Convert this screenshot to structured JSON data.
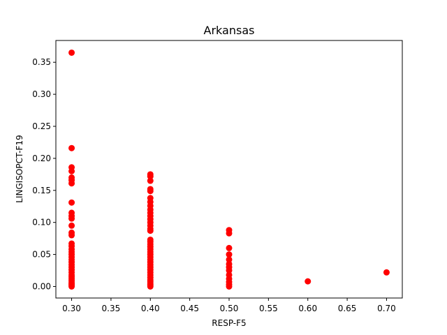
{
  "chart_data": {
    "type": "scatter",
    "title": "Arkansas",
    "xlabel": "RESP-F5",
    "ylabel": "LINGISOPCT-F19",
    "xlim": [
      0.28,
      0.72
    ],
    "ylim": [
      -0.018,
      0.384
    ],
    "xticks": [
      0.3,
      0.35,
      0.4,
      0.45,
      0.5,
      0.55,
      0.6,
      0.65,
      0.7
    ],
    "xtick_labels": [
      "0.30",
      "0.35",
      "0.40",
      "0.45",
      "0.50",
      "0.55",
      "0.60",
      "0.65",
      "0.70"
    ],
    "yticks": [
      0.0,
      0.05,
      0.1,
      0.15,
      0.2,
      0.25,
      0.3,
      0.35
    ],
    "ytick_labels": [
      "0.00",
      "0.05",
      "0.10",
      "0.15",
      "0.20",
      "0.25",
      "0.30",
      "0.35"
    ],
    "grid": false,
    "marker_color": "#ff0000",
    "points": [
      {
        "x": 0.3,
        "y": 0.365
      },
      {
        "x": 0.3,
        "y": 0.216
      },
      {
        "x": 0.3,
        "y": 0.186
      },
      {
        "x": 0.3,
        "y": 0.18
      },
      {
        "x": 0.3,
        "y": 0.17
      },
      {
        "x": 0.3,
        "y": 0.166
      },
      {
        "x": 0.3,
        "y": 0.161
      },
      {
        "x": 0.3,
        "y": 0.131
      },
      {
        "x": 0.3,
        "y": 0.115
      },
      {
        "x": 0.3,
        "y": 0.11
      },
      {
        "x": 0.3,
        "y": 0.106
      },
      {
        "x": 0.3,
        "y": 0.095
      },
      {
        "x": 0.3,
        "y": 0.084
      },
      {
        "x": 0.3,
        "y": 0.08
      },
      {
        "x": 0.3,
        "y": 0.067
      },
      {
        "x": 0.3,
        "y": 0.063
      },
      {
        "x": 0.3,
        "y": 0.058
      },
      {
        "x": 0.3,
        "y": 0.054
      },
      {
        "x": 0.3,
        "y": 0.05
      },
      {
        "x": 0.3,
        "y": 0.046
      },
      {
        "x": 0.3,
        "y": 0.042
      },
      {
        "x": 0.3,
        "y": 0.038
      },
      {
        "x": 0.3,
        "y": 0.034
      },
      {
        "x": 0.3,
        "y": 0.03
      },
      {
        "x": 0.3,
        "y": 0.026
      },
      {
        "x": 0.3,
        "y": 0.022
      },
      {
        "x": 0.3,
        "y": 0.018
      },
      {
        "x": 0.3,
        "y": 0.015
      },
      {
        "x": 0.3,
        "y": 0.012
      },
      {
        "x": 0.3,
        "y": 0.009
      },
      {
        "x": 0.3,
        "y": 0.006
      },
      {
        "x": 0.3,
        "y": 0.004
      },
      {
        "x": 0.3,
        "y": 0.002
      },
      {
        "x": 0.3,
        "y": 0.0
      },
      {
        "x": 0.4,
        "y": 0.175
      },
      {
        "x": 0.4,
        "y": 0.172
      },
      {
        "x": 0.4,
        "y": 0.165
      },
      {
        "x": 0.4,
        "y": 0.152
      },
      {
        "x": 0.4,
        "y": 0.149
      },
      {
        "x": 0.4,
        "y": 0.138
      },
      {
        "x": 0.4,
        "y": 0.132
      },
      {
        "x": 0.4,
        "y": 0.126
      },
      {
        "x": 0.4,
        "y": 0.12
      },
      {
        "x": 0.4,
        "y": 0.115
      },
      {
        "x": 0.4,
        "y": 0.11
      },
      {
        "x": 0.4,
        "y": 0.105
      },
      {
        "x": 0.4,
        "y": 0.1
      },
      {
        "x": 0.4,
        "y": 0.095
      },
      {
        "x": 0.4,
        "y": 0.09
      },
      {
        "x": 0.4,
        "y": 0.087
      },
      {
        "x": 0.4,
        "y": 0.073
      },
      {
        "x": 0.4,
        "y": 0.07
      },
      {
        "x": 0.4,
        "y": 0.066
      },
      {
        "x": 0.4,
        "y": 0.062
      },
      {
        "x": 0.4,
        "y": 0.058
      },
      {
        "x": 0.4,
        "y": 0.054
      },
      {
        "x": 0.4,
        "y": 0.05
      },
      {
        "x": 0.4,
        "y": 0.046
      },
      {
        "x": 0.4,
        "y": 0.042
      },
      {
        "x": 0.4,
        "y": 0.038
      },
      {
        "x": 0.4,
        "y": 0.034
      },
      {
        "x": 0.4,
        "y": 0.03
      },
      {
        "x": 0.4,
        "y": 0.026
      },
      {
        "x": 0.4,
        "y": 0.022
      },
      {
        "x": 0.4,
        "y": 0.018
      },
      {
        "x": 0.4,
        "y": 0.014
      },
      {
        "x": 0.4,
        "y": 0.01
      },
      {
        "x": 0.4,
        "y": 0.007
      },
      {
        "x": 0.4,
        "y": 0.004
      },
      {
        "x": 0.4,
        "y": 0.002
      },
      {
        "x": 0.4,
        "y": 0.0
      },
      {
        "x": 0.5,
        "y": 0.088
      },
      {
        "x": 0.5,
        "y": 0.083
      },
      {
        "x": 0.5,
        "y": 0.06
      },
      {
        "x": 0.5,
        "y": 0.05
      },
      {
        "x": 0.5,
        "y": 0.042
      },
      {
        "x": 0.5,
        "y": 0.035
      },
      {
        "x": 0.5,
        "y": 0.03
      },
      {
        "x": 0.5,
        "y": 0.025
      },
      {
        "x": 0.5,
        "y": 0.018
      },
      {
        "x": 0.5,
        "y": 0.012
      },
      {
        "x": 0.5,
        "y": 0.007
      },
      {
        "x": 0.5,
        "y": 0.003
      },
      {
        "x": 0.5,
        "y": 0.0
      },
      {
        "x": 0.6,
        "y": 0.008
      },
      {
        "x": 0.7,
        "y": 0.022
      }
    ]
  }
}
